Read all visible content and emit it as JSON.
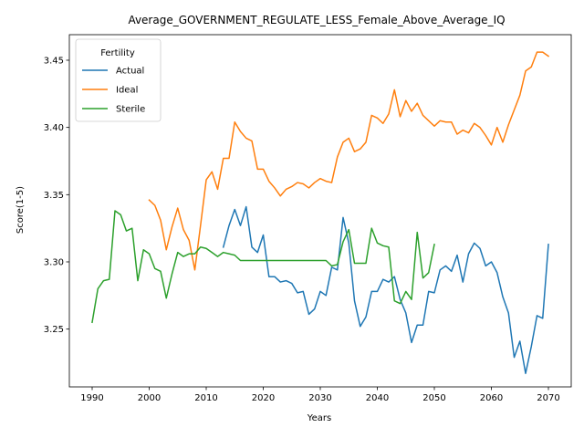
{
  "chart_data": {
    "type": "line",
    "title": "Average_GOVERNMENT_REGULATE_LESS_Female_Above_Average_IQ",
    "xlabel": "Years",
    "ylabel": "Score(1-5)",
    "xlim": [
      1986,
      2074
    ],
    "ylim": [
      3.207,
      3.469
    ],
    "xticks": [
      1990,
      2000,
      2010,
      2020,
      2030,
      2040,
      2050,
      2060,
      2070
    ],
    "yticks": [
      3.25,
      3.3,
      3.35,
      3.4,
      3.45
    ],
    "ytick_labels": [
      "3.25",
      "3.30",
      "3.35",
      "3.40",
      "3.45"
    ],
    "grid": false,
    "legend": {
      "title": "Fertility",
      "placement": "top-left"
    },
    "series": [
      {
        "name": "Actual",
        "color": "#1f77b4",
        "x": [
          2013,
          2014,
          2015,
          2016,
          2017,
          2018,
          2019,
          2020,
          2021,
          2022,
          2023,
          2024,
          2025,
          2026,
          2027,
          2028,
          2029,
          2030,
          2031,
          2032,
          2033,
          2034,
          2035,
          2036,
          2037,
          2038,
          2039,
          2040,
          2041,
          2042,
          2043,
          2044,
          2045,
          2046,
          2047,
          2048,
          2049,
          2050,
          2051,
          2052,
          2053,
          2054,
          2055,
          2056,
          2057,
          2058,
          2059,
          2060,
          2061,
          2062,
          2063,
          2064,
          2065,
          2066,
          2067,
          2068,
          2069,
          2070
        ],
        "y": [
          3.311,
          3.327,
          3.339,
          3.327,
          3.341,
          3.311,
          3.307,
          3.32,
          3.289,
          3.289,
          3.285,
          3.286,
          3.284,
          3.277,
          3.278,
          3.261,
          3.265,
          3.278,
          3.275,
          3.296,
          3.294,
          3.333,
          3.314,
          3.271,
          3.252,
          3.259,
          3.278,
          3.278,
          3.287,
          3.285,
          3.289,
          3.272,
          3.262,
          3.24,
          3.253,
          3.253,
          3.278,
          3.277,
          3.294,
          3.297,
          3.293,
          3.305,
          3.285,
          3.306,
          3.314,
          3.31,
          3.297,
          3.3,
          3.292,
          3.274,
          3.262,
          3.229,
          3.241,
          3.217,
          3.237,
          3.26,
          3.258,
          3.313
        ]
      },
      {
        "name": "Ideal",
        "color": "#ff7f0e",
        "x": [
          2000,
          2001,
          2002,
          2003,
          2004,
          2005,
          2006,
          2007,
          2008,
          2009,
          2010,
          2011,
          2012,
          2013,
          2014,
          2015,
          2016,
          2017,
          2018,
          2019,
          2020,
          2021,
          2022,
          2023,
          2024,
          2025,
          2026,
          2027,
          2028,
          2029,
          2030,
          2031,
          2032,
          2033,
          2034,
          2035,
          2036,
          2037,
          2038,
          2039,
          2040,
          2041,
          2042,
          2043,
          2044,
          2045,
          2046,
          2047,
          2048,
          2049,
          2050,
          2051,
          2052,
          2053,
          2054,
          2055,
          2056,
          2057,
          2058,
          2059,
          2060,
          2061,
          2062,
          2063,
          2064,
          2065,
          2066,
          2067,
          2068,
          2069,
          2070
        ],
        "y": [
          3.346,
          3.342,
          3.331,
          3.309,
          3.326,
          3.34,
          3.324,
          3.316,
          3.294,
          3.327,
          3.361,
          3.367,
          3.354,
          3.377,
          3.377,
          3.404,
          3.397,
          3.392,
          3.39,
          3.369,
          3.369,
          3.36,
          3.355,
          3.349,
          3.354,
          3.356,
          3.359,
          3.358,
          3.355,
          3.359,
          3.362,
          3.36,
          3.359,
          3.378,
          3.389,
          3.392,
          3.382,
          3.384,
          3.389,
          3.409,
          3.407,
          3.403,
          3.41,
          3.428,
          3.408,
          3.42,
          3.412,
          3.418,
          3.409,
          3.405,
          3.401,
          3.405,
          3.404,
          3.404,
          3.395,
          3.398,
          3.396,
          3.403,
          3.4,
          3.394,
          3.387,
          3.4,
          3.389,
          3.402,
          3.413,
          3.424,
          3.442,
          3.445,
          3.456,
          3.456,
          3.453
        ]
      },
      {
        "name": "Sterile",
        "color": "#2ca02c",
        "x": [
          1990,
          1991,
          1992,
          1993,
          1994,
          1995,
          1996,
          1997,
          1998,
          1999,
          2000,
          2001,
          2002,
          2003,
          2004,
          2005,
          2006,
          2007,
          2008,
          2009,
          2010,
          2011,
          2012,
          2013,
          2014,
          2015,
          2016,
          2017,
          2018,
          2019,
          2020,
          2021,
          2022,
          2023,
          2024,
          2025,
          2026,
          2027,
          2028,
          2029,
          2030,
          2031,
          2032,
          2033,
          2034,
          2035,
          2036,
          2037,
          2038,
          2039,
          2040,
          2041,
          2042,
          2043,
          2044,
          2045,
          2046,
          2047,
          2048,
          2049,
          2050
        ],
        "y": [
          3.255,
          3.28,
          3.286,
          3.287,
          3.338,
          3.335,
          3.323,
          3.325,
          3.286,
          3.309,
          3.306,
          3.295,
          3.293,
          3.273,
          3.291,
          3.307,
          3.304,
          3.306,
          3.306,
          3.311,
          3.31,
          3.307,
          3.304,
          3.307,
          3.306,
          3.305,
          3.301,
          3.301,
          3.301,
          3.301,
          3.301,
          3.301,
          3.301,
          3.301,
          3.301,
          3.301,
          3.301,
          3.301,
          3.301,
          3.301,
          3.301,
          3.301,
          3.297,
          3.298,
          3.315,
          3.324,
          3.299,
          3.299,
          3.299,
          3.325,
          3.314,
          3.312,
          3.311,
          3.271,
          3.269,
          3.278,
          3.272,
          3.322,
          3.288,
          3.292,
          3.313
        ]
      }
    ]
  }
}
